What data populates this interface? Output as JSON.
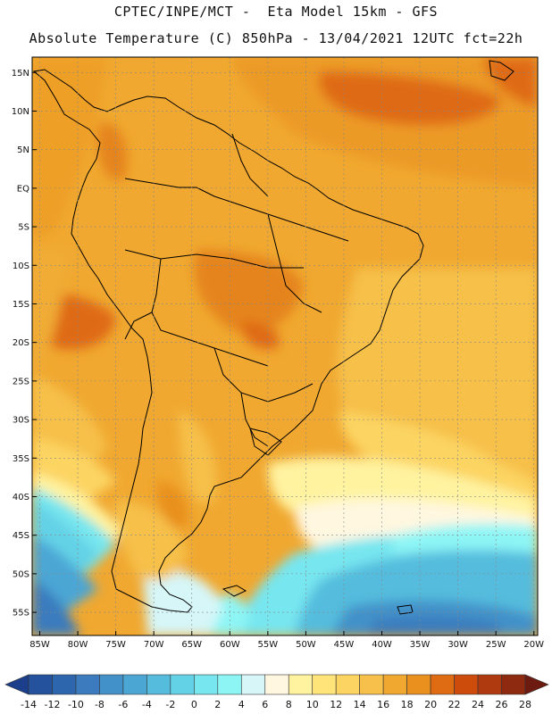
{
  "header": {
    "line1": "CPTEC/INPE/MCT -  Eta Model 15km - GFS",
    "line2": "Absolute Temperature (C) 850hPa - 13/04/2021 12UTC fct=22h"
  },
  "map": {
    "lat_labels": [
      "15N",
      "10N",
      "5N",
      "EQ",
      "5S",
      "10S",
      "15S",
      "20S",
      "25S",
      "30S",
      "35S",
      "40S",
      "45S",
      "50S",
      "55S"
    ],
    "lon_labels": [
      "85W",
      "80W",
      "75W",
      "70W",
      "65W",
      "60W",
      "55W",
      "50W",
      "45W",
      "40W",
      "35W",
      "30W",
      "25W",
      "20W"
    ]
  },
  "colorbar": {
    "values": [
      "-14",
      "-12",
      "-10",
      "-8",
      "-6",
      "-4",
      "-2",
      "0",
      "2",
      "4",
      "6",
      "8",
      "10",
      "12",
      "14",
      "16",
      "18",
      "20",
      "22",
      "24",
      "26",
      "28"
    ],
    "colors": [
      "#1b3f8b",
      "#24529c",
      "#2e66ad",
      "#3b7bbe",
      "#4391c9",
      "#4ca6d4",
      "#55bcdd",
      "#63d2e6",
      "#77e6ef",
      "#8ef5f5",
      "#d6f6f8",
      "#fff7e0",
      "#fff3a0",
      "#ffe47a",
      "#fcd462",
      "#f6c04a",
      "#f0a830",
      "#e9901e",
      "#df6b12",
      "#cd4c0c",
      "#b03a10",
      "#8e2a10",
      "#6d1a10"
    ]
  }
}
